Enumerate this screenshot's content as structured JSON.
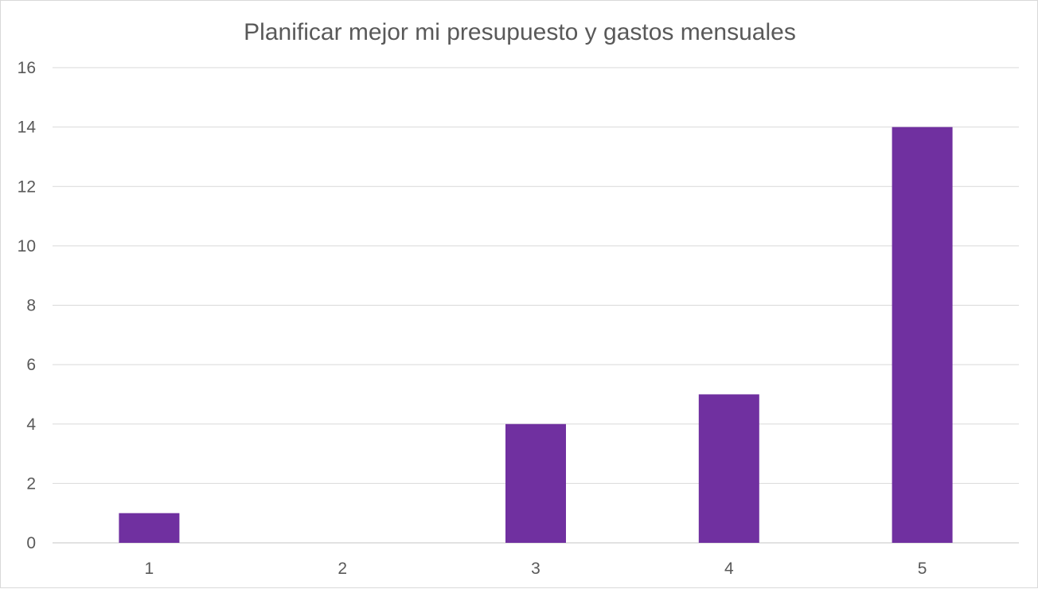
{
  "chart_data": {
    "type": "bar",
    "title": "Planificar mejor mi presupuesto y gastos mensuales",
    "xlabel": "",
    "ylabel": "",
    "categories": [
      "1",
      "2",
      "3",
      "4",
      "5"
    ],
    "values": [
      1,
      0,
      4,
      5,
      14
    ],
    "ylim": [
      0,
      16
    ],
    "yticks": [
      0,
      2,
      4,
      6,
      8,
      10,
      12,
      14,
      16
    ],
    "grid": true,
    "legend": "none",
    "bar_color": "#7030a0",
    "grid_color": "#d9d9d9",
    "text_color": "#595959"
  }
}
